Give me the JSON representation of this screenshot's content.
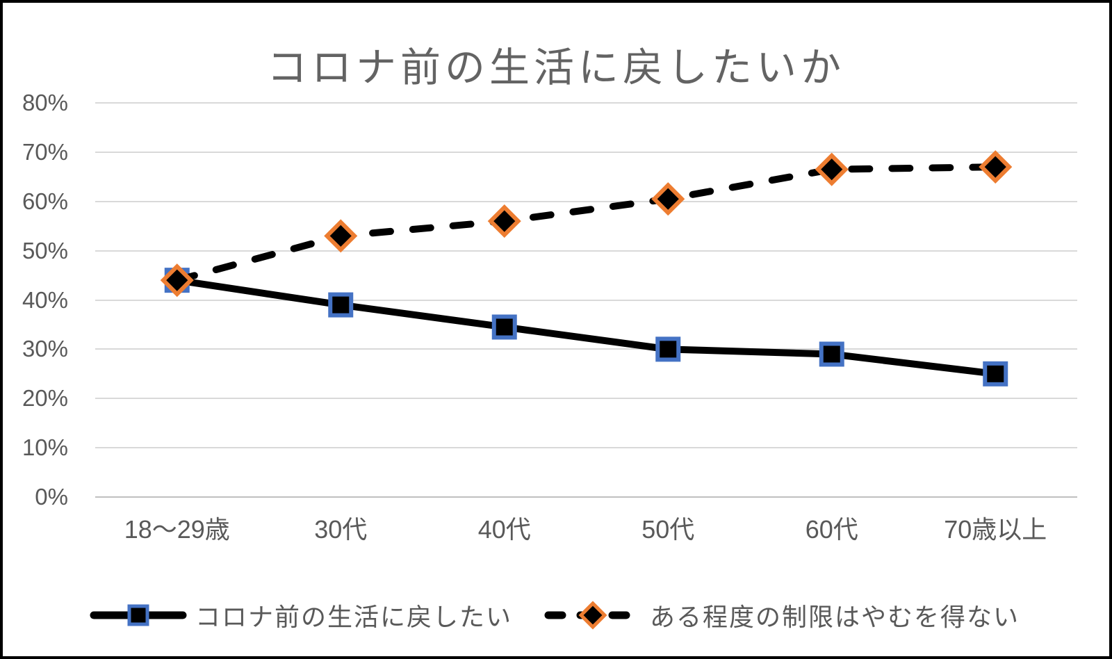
{
  "chart_data": {
    "type": "line",
    "title": "コロナ前の生活に戻したいか",
    "categories": [
      "18〜29歳",
      "30代",
      "40代",
      "50代",
      "60代",
      "70歳以上"
    ],
    "series": [
      {
        "name": "コロナ前の生活に戻したい",
        "values": [
          44,
          39,
          34.5,
          30,
          29,
          25
        ],
        "line_style": "solid",
        "line_color": "#000000",
        "marker": "square",
        "marker_fill": "#000000",
        "marker_border_color": "#4472C4"
      },
      {
        "name": "ある程度の制限はやむを得ない",
        "values": [
          44,
          53,
          56,
          60.5,
          66.5,
          67
        ],
        "line_style": "dashed",
        "line_color": "#000000",
        "marker": "diamond",
        "marker_fill": "#000000",
        "marker_border_color": "#ED7D31"
      }
    ],
    "xlabel": "",
    "ylabel": "",
    "ylim": [
      0,
      80
    ],
    "yticks": [
      "0%",
      "10%",
      "20%",
      "30%",
      "40%",
      "50%",
      "60%",
      "70%",
      "80%"
    ],
    "grid": true,
    "legend_position": "bottom",
    "colors": {
      "background": "#ffffff",
      "outer_border": "#000000",
      "grid": "#d9d9d9",
      "axis_line": "#bfbfbf",
      "text": "#595959",
      "title": "#636363"
    }
  }
}
